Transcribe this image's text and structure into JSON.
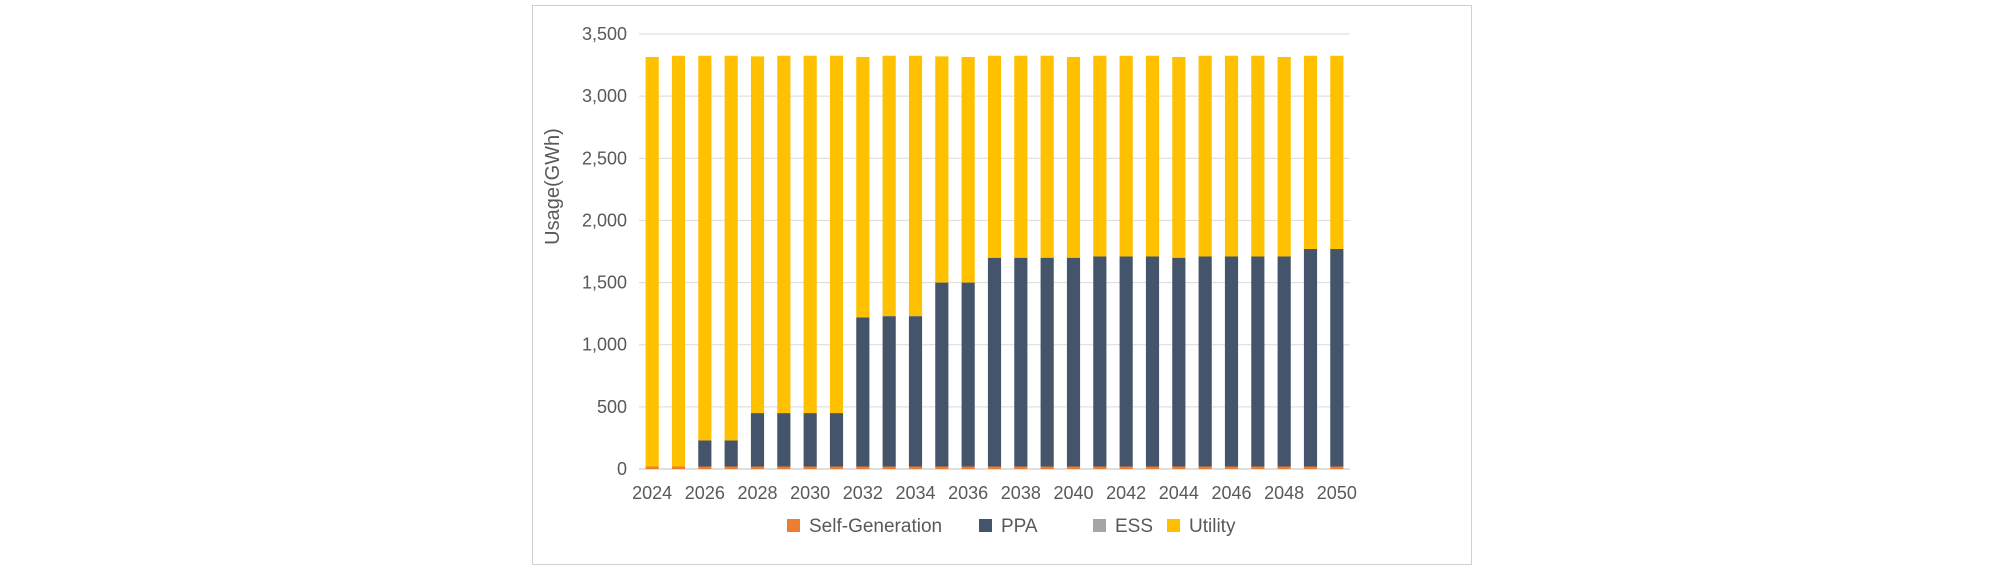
{
  "chart_data": {
    "type": "bar",
    "stacked": true,
    "title": "",
    "xlabel": "",
    "ylabel": "Usage(GWh)",
    "ylim": [
      0,
      3500
    ],
    "yticks": [
      0,
      500,
      1000,
      1500,
      2000,
      2500,
      3000,
      3500
    ],
    "ytick_labels": [
      "0",
      "500",
      "1,000",
      "1,500",
      "2,000",
      "2,500",
      "3,000",
      "3,500"
    ],
    "grid": true,
    "legend_position": "bottom",
    "categories": [
      "2024",
      "2025",
      "2026",
      "2027",
      "2028",
      "2029",
      "2030",
      "2031",
      "2032",
      "2033",
      "2034",
      "2035",
      "2036",
      "2037",
      "2038",
      "2039",
      "2040",
      "2041",
      "2042",
      "2043",
      "2044",
      "2045",
      "2046",
      "2047",
      "2048",
      "2049",
      "2050"
    ],
    "xtick_labels": [
      "2024",
      "2026",
      "2028",
      "2030",
      "2032",
      "2034",
      "2036",
      "2038",
      "2040",
      "2042",
      "2044",
      "2046",
      "2048",
      "2050"
    ],
    "series": [
      {
        "name": "Self-Generation",
        "color": "#ed7d31",
        "values": [
          20,
          20,
          20,
          20,
          20,
          20,
          20,
          20,
          20,
          20,
          20,
          20,
          20,
          20,
          20,
          20,
          20,
          20,
          20,
          20,
          20,
          20,
          20,
          20,
          20,
          20,
          20
        ]
      },
      {
        "name": "PPA",
        "color": "#44546a",
        "values": [
          0,
          0,
          210,
          210,
          430,
          430,
          430,
          430,
          1200,
          1210,
          1210,
          1480,
          1480,
          1680,
          1680,
          1680,
          1680,
          1690,
          1690,
          1690,
          1680,
          1690,
          1690,
          1690,
          1690,
          1750,
          1750
        ]
      },
      {
        "name": "ESS",
        "color": "#a5a5a5",
        "values": [
          0,
          0,
          0,
          0,
          0,
          0,
          0,
          0,
          0,
          0,
          0,
          0,
          0,
          0,
          0,
          0,
          0,
          0,
          0,
          0,
          0,
          0,
          0,
          0,
          0,
          0,
          0
        ]
      },
      {
        "name": "Utility",
        "color": "#ffc000",
        "values": [
          3295,
          3305,
          3095,
          3095,
          2870,
          2875,
          2875,
          2875,
          2095,
          2095,
          2095,
          1820,
          1815,
          1625,
          1625,
          1625,
          1615,
          1615,
          1615,
          1615,
          1615,
          1615,
          1615,
          1615,
          1605,
          1555,
          1555
        ]
      }
    ]
  }
}
